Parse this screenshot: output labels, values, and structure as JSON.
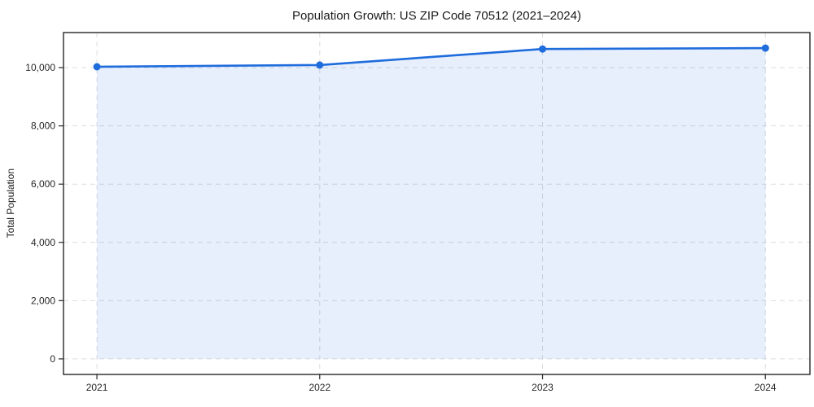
{
  "chart_data": {
    "type": "area",
    "title": "Population Growth: US ZIP Code 70512 (2021–2024)",
    "xlabel": "",
    "ylabel": "Total Population",
    "x": [
      2021,
      2022,
      2023,
      2024
    ],
    "x_tick_labels": [
      "2021",
      "2022",
      "2023",
      "2024"
    ],
    "series": [
      {
        "name": "Total Population",
        "values": [
          10030,
          10090,
          10640,
          10670
        ]
      }
    ],
    "y_ticks": [
      0,
      2000,
      4000,
      6000,
      8000,
      10000
    ],
    "y_tick_labels": [
      "0",
      "2,000",
      "4,000",
      "6,000",
      "8,000",
      "10,000"
    ],
    "xlim": [
      2020.85,
      2024.2
    ],
    "ylim": [
      -534,
      11204
    ],
    "grid": {
      "shown": true,
      "style": "dashed",
      "axes": "both",
      "color": "#d9dce1"
    },
    "legend": {
      "shown": false
    },
    "line_color": "#1f6cdd",
    "marker": "circle",
    "marker_color": "#1f6cdd",
    "fill_color": "#1f6cdd",
    "fill_opacity": 0.11,
    "background_color": "#ffffff",
    "spine_color": "#262626"
  }
}
